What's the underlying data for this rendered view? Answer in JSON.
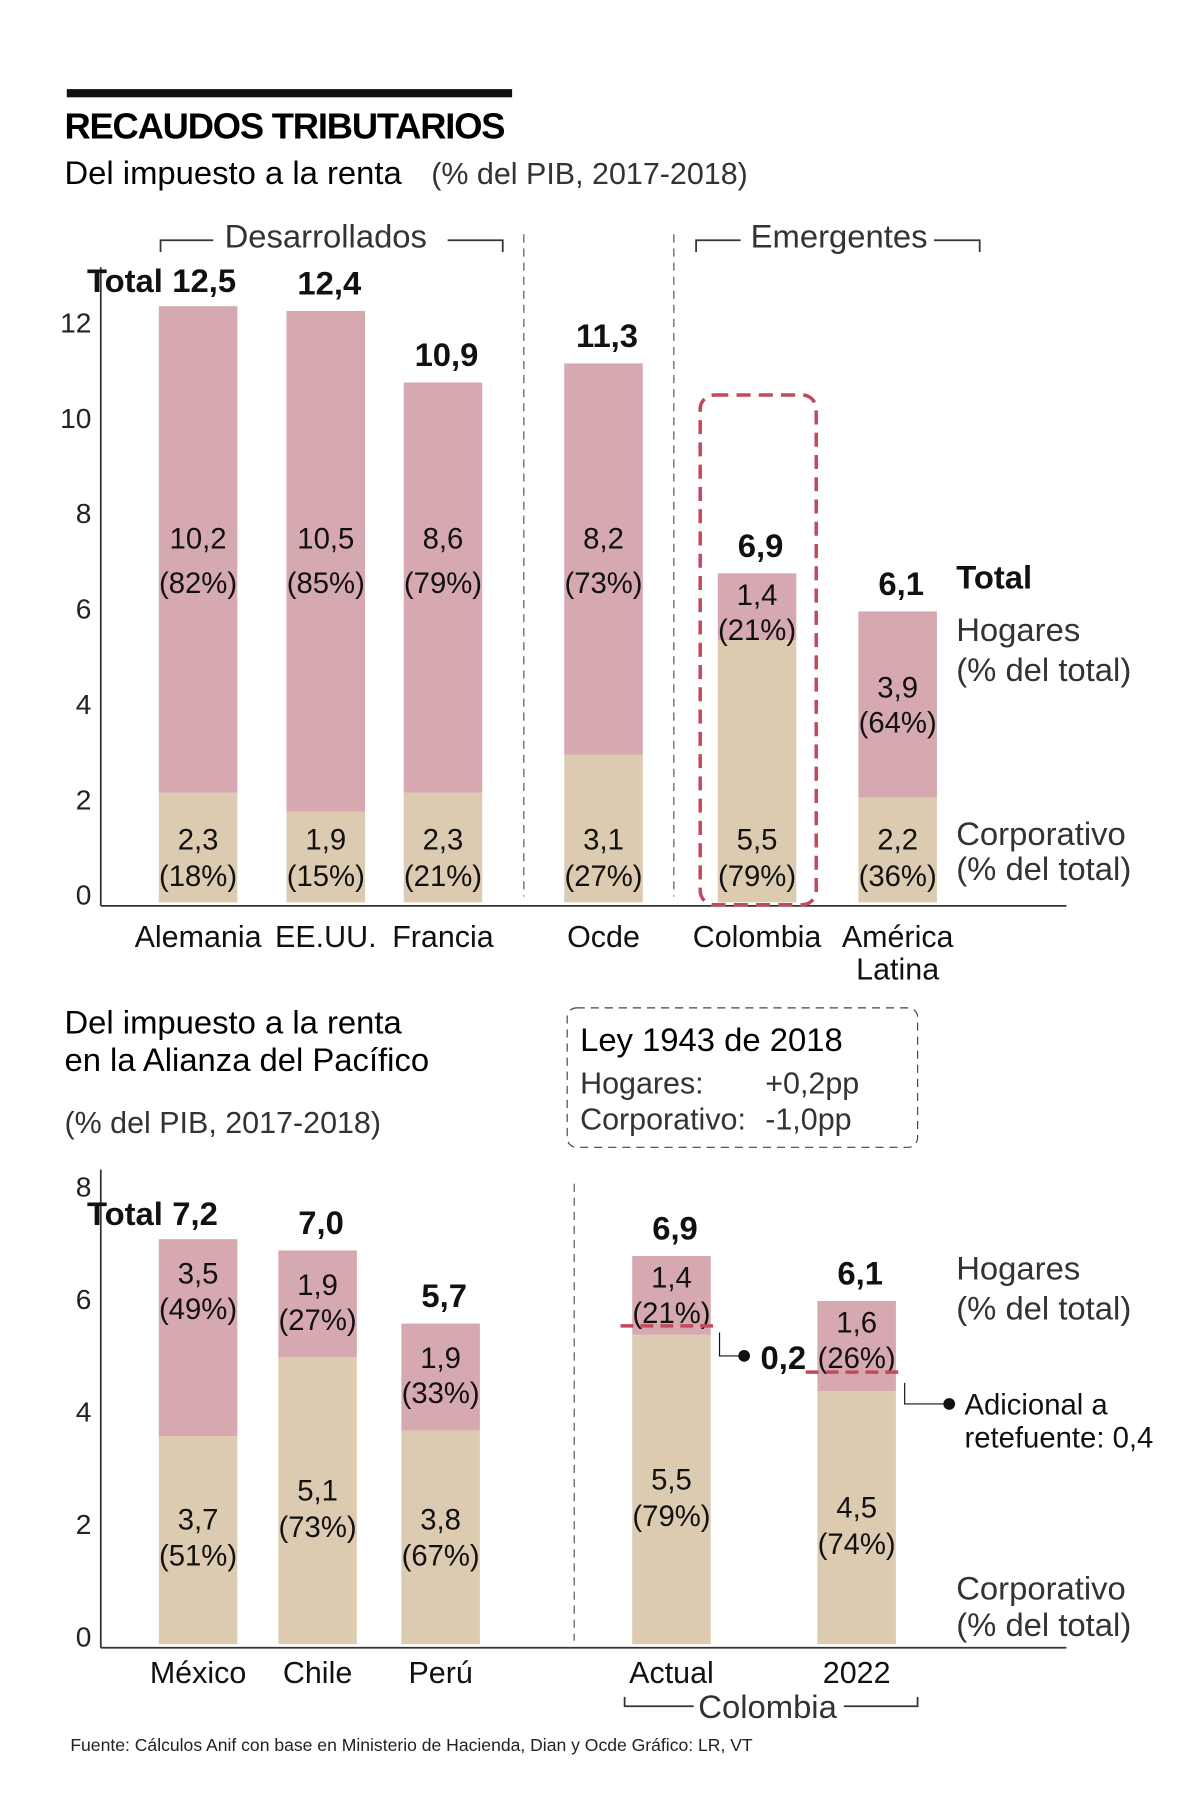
{
  "title": "RECAUDOS TRIBUTARIOS",
  "subtitle_main": "Del impuesto a la renta",
  "subtitle_unit": "(% del PIB, 2017-2018)",
  "colors": {
    "hogares": "#d6a8af",
    "corporativo": "#dccbb0",
    "highlight": "#c24a5c"
  },
  "chart_data": [
    {
      "type": "bar",
      "stacked": true,
      "title": "Del impuesto a la renta (% del PIB, 2017-2018)",
      "groups": [
        {
          "label": "Desarrollados",
          "categories": [
            "Alemania",
            "EE.UU.",
            "Francia"
          ]
        },
        {
          "label": "Emergentes",
          "categories": [
            "Colombia",
            "América Latina"
          ]
        }
      ],
      "categories": [
        "Alemania",
        "EE.UU.",
        "Francia",
        "Ocde",
        "Colombia",
        "América Latina"
      ],
      "category_lines": [
        [
          "Alemania"
        ],
        [
          "EE.UU."
        ],
        [
          "Francia"
        ],
        [
          "Ocde"
        ],
        [
          "Colombia"
        ],
        [
          "América",
          "Latina"
        ]
      ],
      "total_label": "Total",
      "totals": [
        "12,5",
        "12,4",
        "10,9",
        "11,3",
        "6,9",
        "6,1"
      ],
      "series": [
        {
          "name": "Corporativo (% del total)",
          "values": [
            2.3,
            1.9,
            2.3,
            3.1,
            5.5,
            2.2
          ],
          "labels": [
            "2,3",
            "1,9",
            "2,3",
            "3,1",
            "5,5",
            "2,2"
          ],
          "pct": [
            "(18%)",
            "(15%)",
            "(21%)",
            "(27%)",
            "(79%)",
            "(36%)"
          ]
        },
        {
          "name": "Hogares (% del total)",
          "values": [
            10.2,
            10.5,
            8.6,
            8.2,
            1.4,
            3.9
          ],
          "labels": [
            "10,2",
            "10,5",
            "8,6",
            "8,2",
            "1,4",
            "3,9"
          ],
          "pct": [
            "(82%)",
            "(85%)",
            "(79%)",
            "(73%)",
            "(21%)",
            "(64%)"
          ]
        }
      ],
      "legend": {
        "total": "Total",
        "hogares": [
          "Hogares",
          "(% del total)"
        ],
        "corporativo": [
          "Corporativo",
          "(% del total)"
        ]
      },
      "yticks": [
        "0",
        "2",
        "4",
        "6",
        "8",
        "10",
        "12"
      ],
      "ylim": [
        0,
        12.5
      ],
      "highlight": "Colombia"
    },
    {
      "type": "bar",
      "stacked": true,
      "title": [
        "Del impuesto a la renta",
        "en la Alianza del Pacífico"
      ],
      "unit": "(% del PIB, 2017-2018)",
      "categories": [
        "México",
        "Chile",
        "Perú",
        "Actual",
        "2022"
      ],
      "group_label": "Colombia",
      "total_label": "Total",
      "totals": [
        "7,2",
        "7,0",
        "5,7",
        "6,9",
        "6,1"
      ],
      "series": [
        {
          "name": "Corporativo (% del total)",
          "values": [
            3.7,
            5.1,
            3.8,
            5.5,
            4.5
          ],
          "labels": [
            "3,7",
            "5,1",
            "3,8",
            "5,5",
            "4,5"
          ],
          "pct": [
            "(51%)",
            "(73%)",
            "(67%)",
            "(79%)",
            "(74%)"
          ]
        },
        {
          "name": "Hogares (% del total)",
          "values": [
            3.5,
            1.9,
            1.9,
            1.4,
            1.6
          ],
          "labels": [
            "3,5",
            "1,9",
            "1,9",
            "1,4",
            "1,6"
          ],
          "pct": [
            "(49%)",
            "(27%)",
            "(33%)",
            "(21%)",
            "(26%)"
          ]
        }
      ],
      "legend": {
        "hogares": [
          "Hogares",
          "(% del total)"
        ],
        "corporativo": [
          "Corporativo",
          "(% del total)"
        ]
      },
      "yticks": [
        "0",
        "2",
        "4",
        "6",
        "8"
      ],
      "ylim": [
        0,
        8
      ],
      "annotations": {
        "actual": "0,2",
        "y2022": [
          "Adicional a",
          "retefuente: 0,4"
        ]
      },
      "box": {
        "title": "Ley 1943 de 2018",
        "rows": [
          {
            "label": "Hogares:",
            "value": "+0,2pp"
          },
          {
            "label": "Corporativo:",
            "value": "-1,0pp"
          }
        ]
      }
    }
  ],
  "footer": "Fuente: Cálculos Anif con base en Ministerio de Hacienda, Dian y Ocde   Gráfico: LR, VT"
}
